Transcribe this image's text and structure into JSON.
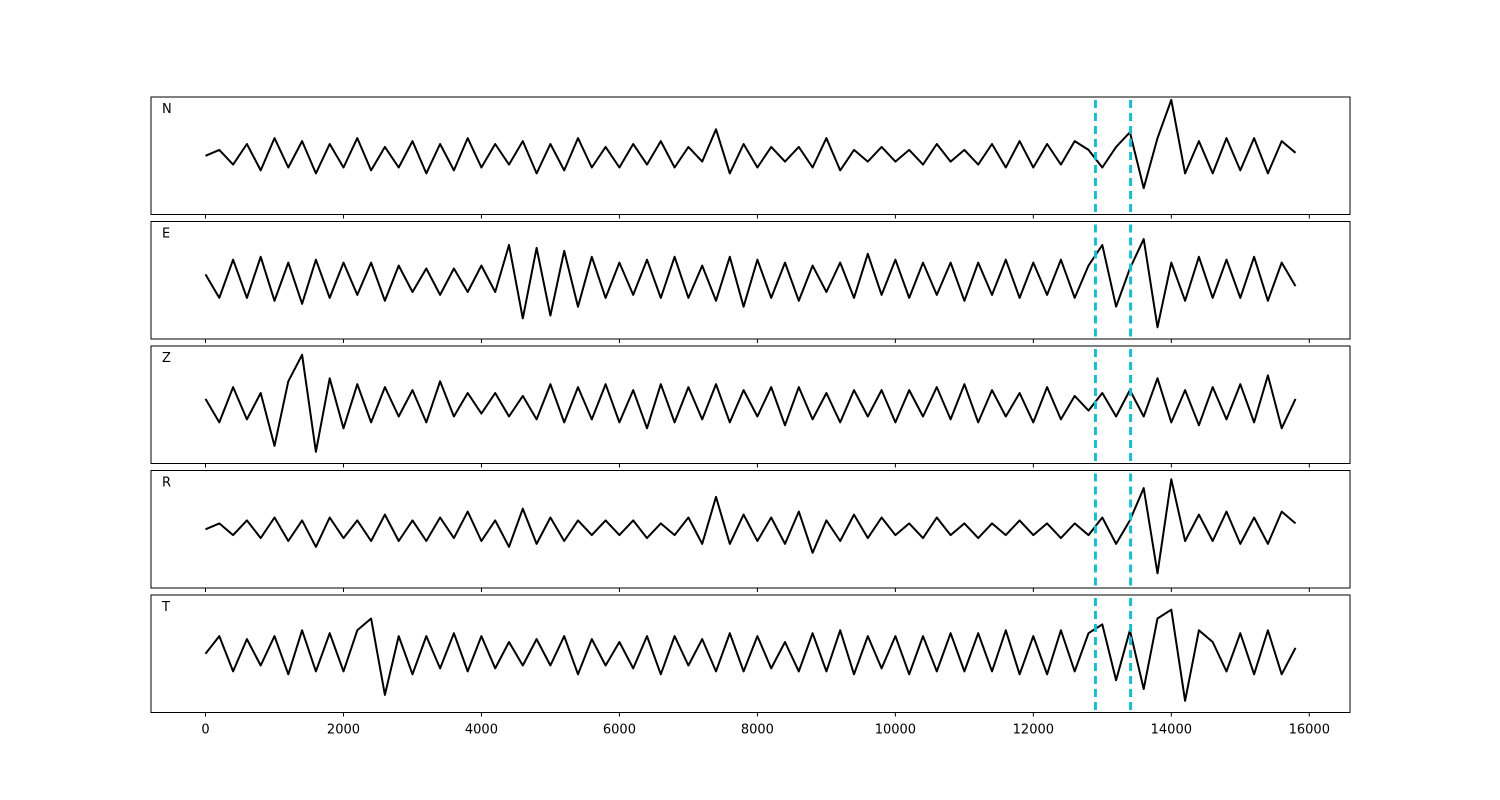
{
  "chart_data": {
    "type": "line",
    "x": [
      0,
      200,
      400,
      600,
      800,
      1000,
      1200,
      1400,
      1600,
      1800,
      2000,
      2200,
      2400,
      2600,
      2800,
      3000,
      3200,
      3400,
      3600,
      3800,
      4000,
      4200,
      4400,
      4600,
      4800,
      5000,
      5200,
      5400,
      5600,
      5800,
      6000,
      6200,
      6400,
      6600,
      6800,
      7000,
      7200,
      7400,
      7600,
      7800,
      8000,
      8200,
      8400,
      8600,
      8800,
      9000,
      9200,
      9400,
      9600,
      9800,
      10000,
      10200,
      10400,
      10600,
      10800,
      11000,
      11200,
      11400,
      11600,
      11800,
      12000,
      12200,
      12400,
      12600,
      12800,
      13000,
      13200,
      13400,
      13600,
      13800,
      14000,
      14200,
      14400,
      14600,
      14800,
      15000,
      15200,
      15400,
      15600,
      15800
    ],
    "xlim": [
      -790,
      16590
    ],
    "xticks": [
      0,
      2000,
      4000,
      6000,
      8000,
      10000,
      12000,
      14000,
      16000
    ],
    "ylim": [
      -1,
      1
    ],
    "vlines": [
      12900,
      13410
    ],
    "vline_color": "#17becf",
    "series": [
      {
        "name": "N",
        "color": "#000000",
        "values": [
          0,
          0.1,
          -0.15,
          0.2,
          -0.25,
          0.3,
          -0.2,
          0.25,
          -0.3,
          0.2,
          -0.2,
          0.3,
          -0.25,
          0.15,
          -0.2,
          0.25,
          -0.3,
          0.2,
          -0.25,
          0.3,
          -0.2,
          0.2,
          -0.15,
          0.25,
          -0.3,
          0.2,
          -0.25,
          0.3,
          -0.2,
          0.15,
          -0.2,
          0.2,
          -0.15,
          0.25,
          -0.2,
          0.15,
          -0.1,
          0.45,
          -0.3,
          0.2,
          -0.2,
          0.15,
          -0.1,
          0.15,
          -0.2,
          0.3,
          -0.25,
          0.1,
          -0.1,
          0.15,
          -0.1,
          0.1,
          -0.15,
          0.2,
          -0.1,
          0.1,
          -0.15,
          0.2,
          -0.2,
          0.25,
          -0.2,
          0.2,
          -0.15,
          0.25,
          0.1,
          -0.2,
          0.15,
          0.4,
          -0.55,
          0.3,
          0.95,
          -0.3,
          0.25,
          -0.3,
          0.3,
          -0.25,
          0.3,
          -0.3,
          0.25,
          0.05
        ]
      },
      {
        "name": "E",
        "color": "#000000",
        "values": [
          0.1,
          -0.3,
          0.35,
          -0.3,
          0.4,
          -0.35,
          0.3,
          -0.4,
          0.35,
          -0.3,
          0.3,
          -0.25,
          0.3,
          -0.35,
          0.25,
          -0.2,
          0.2,
          -0.25,
          0.2,
          -0.2,
          0.25,
          -0.2,
          0.6,
          -0.65,
          0.55,
          -0.6,
          0.5,
          -0.45,
          0.4,
          -0.3,
          0.3,
          -0.25,
          0.35,
          -0.3,
          0.4,
          -0.3,
          0.25,
          -0.35,
          0.4,
          -0.45,
          0.35,
          -0.3,
          0.3,
          -0.35,
          0.25,
          -0.2,
          0.3,
          -0.3,
          0.45,
          -0.25,
          0.35,
          -0.3,
          0.3,
          -0.25,
          0.3,
          -0.35,
          0.3,
          -0.25,
          0.35,
          -0.3,
          0.3,
          -0.25,
          0.35,
          -0.3,
          0.25,
          0.6,
          -0.45,
          0.2,
          0.7,
          -0.8,
          0.3,
          -0.35,
          0.4,
          -0.3,
          0.35,
          -0.3,
          0.4,
          -0.35,
          0.3,
          -0.1
        ]
      },
      {
        "name": "Z",
        "color": "#000000",
        "values": [
          0.1,
          -0.3,
          0.3,
          -0.25,
          0.2,
          -0.7,
          0.4,
          0.85,
          -0.8,
          0.45,
          -0.4,
          0.35,
          -0.3,
          0.3,
          -0.2,
          0.25,
          -0.3,
          0.4,
          -0.2,
          0.2,
          -0.15,
          0.2,
          -0.2,
          0.15,
          -0.25,
          0.35,
          -0.3,
          0.3,
          -0.25,
          0.35,
          -0.3,
          0.25,
          -0.4,
          0.35,
          -0.3,
          0.3,
          -0.25,
          0.35,
          -0.3,
          0.25,
          -0.2,
          0.3,
          -0.35,
          0.3,
          -0.25,
          0.2,
          -0.3,
          0.25,
          -0.2,
          0.25,
          -0.3,
          0.25,
          -0.2,
          0.3,
          -0.25,
          0.35,
          -0.3,
          0.25,
          -0.2,
          0.2,
          -0.3,
          0.3,
          -0.25,
          0.15,
          -0.1,
          0.2,
          -0.2,
          0.25,
          -0.2,
          0.45,
          -0.3,
          0.25,
          -0.35,
          0.3,
          -0.25,
          0.35,
          -0.3,
          0.5,
          -0.4,
          0.1
        ]
      },
      {
        "name": "R",
        "color": "#000000",
        "values": [
          0,
          0.1,
          -0.1,
          0.15,
          -0.15,
          0.2,
          -0.2,
          0.15,
          -0.3,
          0.2,
          -0.15,
          0.15,
          -0.2,
          0.25,
          -0.2,
          0.15,
          -0.2,
          0.2,
          -0.15,
          0.3,
          -0.2,
          0.15,
          -0.3,
          0.35,
          -0.25,
          0.2,
          -0.2,
          0.15,
          -0.1,
          0.15,
          -0.1,
          0.15,
          -0.15,
          0.1,
          -0.1,
          0.2,
          -0.25,
          0.55,
          -0.25,
          0.25,
          -0.2,
          0.2,
          -0.25,
          0.3,
          -0.4,
          0.15,
          -0.2,
          0.25,
          -0.15,
          0.2,
          -0.1,
          0.1,
          -0.15,
          0.2,
          -0.1,
          0.1,
          -0.15,
          0.1,
          -0.1,
          0.15,
          -0.1,
          0.1,
          -0.15,
          0.1,
          -0.1,
          0.2,
          -0.25,
          0.15,
          0.7,
          -0.75,
          0.85,
          -0.2,
          0.25,
          -0.2,
          0.3,
          -0.25,
          0.2,
          -0.25,
          0.3,
          0.1
        ]
      },
      {
        "name": "T",
        "color": "#000000",
        "values": [
          0,
          0.3,
          -0.3,
          0.25,
          -0.2,
          0.3,
          -0.35,
          0.4,
          -0.3,
          0.35,
          -0.3,
          0.4,
          0.6,
          -0.7,
          0.3,
          -0.35,
          0.3,
          -0.25,
          0.35,
          -0.3,
          0.3,
          -0.25,
          0.2,
          -0.2,
          0.25,
          -0.2,
          0.3,
          -0.35,
          0.25,
          -0.2,
          0.2,
          -0.25,
          0.3,
          -0.35,
          0.3,
          -0.2,
          0.25,
          -0.3,
          0.35,
          -0.3,
          0.3,
          -0.25,
          0.2,
          -0.3,
          0.35,
          -0.3,
          0.4,
          -0.35,
          0.3,
          -0.25,
          0.3,
          -0.35,
          0.3,
          -0.3,
          0.35,
          -0.3,
          0.35,
          -0.3,
          0.4,
          -0.35,
          0.3,
          -0.35,
          0.4,
          -0.3,
          0.35,
          0.5,
          -0.45,
          0.4,
          -0.6,
          0.6,
          0.75,
          -0.8,
          0.4,
          0.2,
          -0.3,
          0.35,
          -0.35,
          0.4,
          -0.35,
          0.1
        ]
      }
    ]
  }
}
